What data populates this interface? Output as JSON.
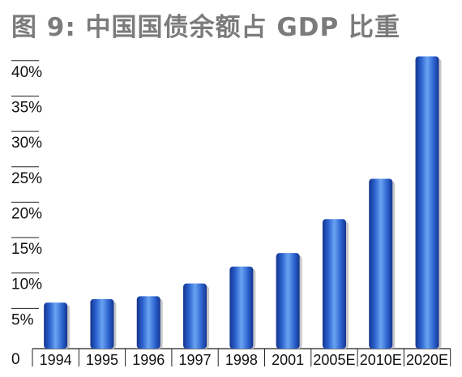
{
  "title": "图 9: 中国国债余额占 GDP 比重",
  "chart_data": {
    "type": "bar",
    "title": "图 9: 中国国债余额占 GDP 比重",
    "xlabel": "",
    "ylabel": "",
    "categories": [
      "1994",
      "1995",
      "1996",
      "1997",
      "1998",
      "2001",
      "2005E",
      "2010E",
      "2020E"
    ],
    "values": [
      6.5,
      7.0,
      7.4,
      9.2,
      11.6,
      13.5,
      18.3,
      24.0,
      41.3
    ],
    "ylim": [
      0,
      42
    ],
    "yticks": [
      0,
      5,
      10,
      15,
      20,
      25,
      30,
      35,
      40
    ],
    "ytick_labels": [
      "0",
      "5%",
      "10%",
      "15%",
      "20%",
      "25%",
      "30%",
      "35%",
      "40%"
    ],
    "grid": false,
    "legend": "none",
    "bar_color_light": "#6aa3f2",
    "bar_color_mid": "#2c63cf",
    "bar_color_dark": "#14348f"
  }
}
